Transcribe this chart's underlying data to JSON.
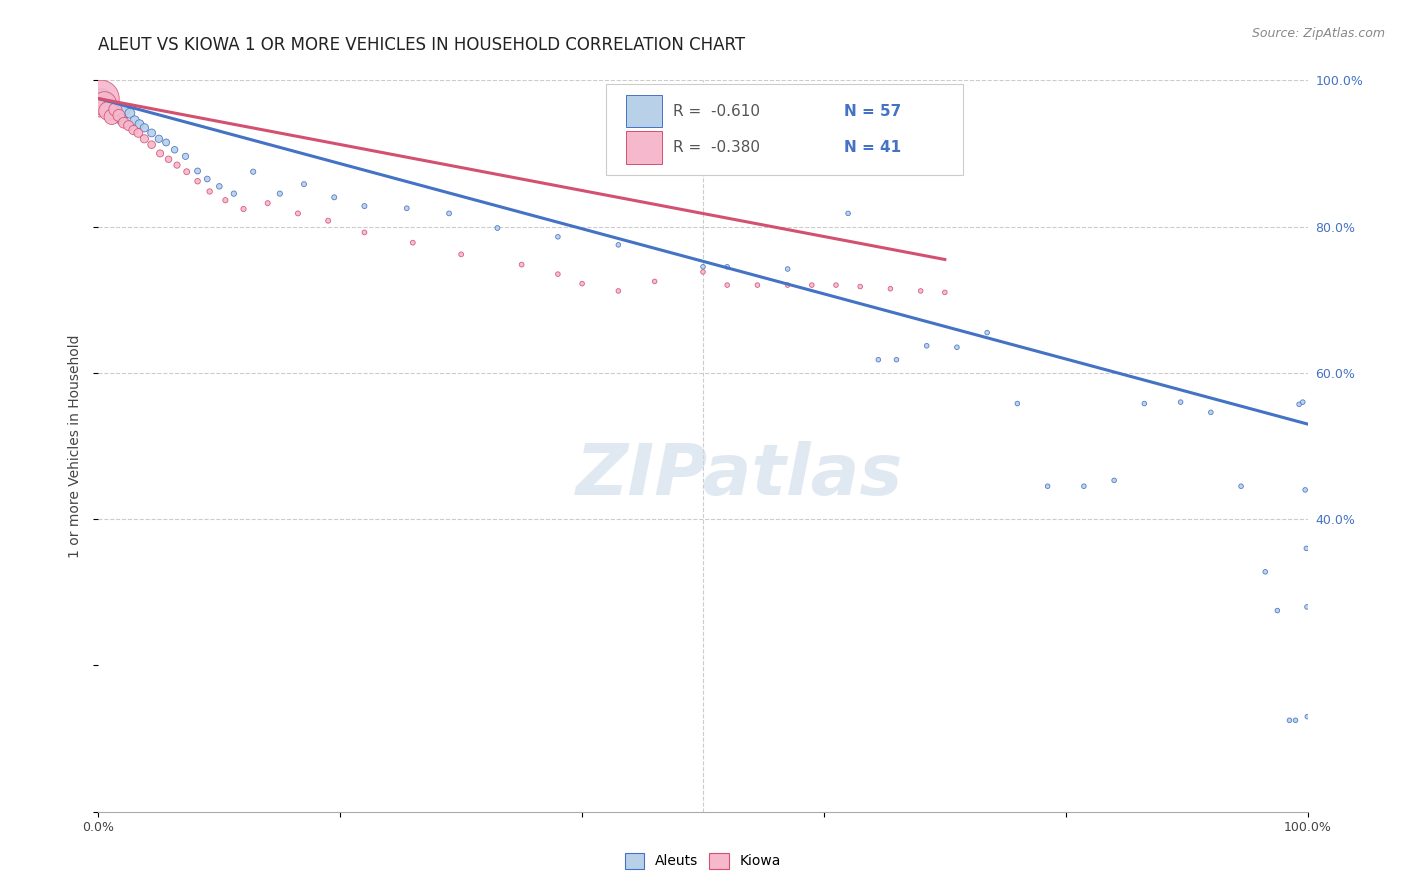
{
  "title": "ALEUT VS KIOWA 1 OR MORE VEHICLES IN HOUSEHOLD CORRELATION CHART",
  "source": "Source: ZipAtlas.com",
  "ylabel": "1 or more Vehicles in Household",
  "legend_R_aleut": "R =  -0.610",
  "legend_R_kiowa": "R =  -0.380",
  "legend_N_aleut": "N = 57",
  "legend_N_kiowa": "N = 41",
  "legend_label_aleut": "Aleuts",
  "legend_label_kiowa": "Kiowa",
  "aleut_color": "#b8d0e8",
  "kiowa_color": "#f5b8cc",
  "aleut_line_color": "#4472c4",
  "kiowa_line_color": "#d45070",
  "background_color": "#ffffff",
  "watermark": "ZIPatlas",
  "xlim": [
    0.0,
    1.0
  ],
  "ylim": [
    0.0,
    1.0
  ],
  "xticks": [
    0.0,
    0.2,
    0.4,
    0.6,
    0.8,
    1.0
  ],
  "yticks": [
    0.4,
    0.6,
    0.8,
    1.0
  ],
  "xticklabels": [
    "0.0%",
    "",
    "",
    "",
    "",
    "100.0%"
  ],
  "yticklabels_right": [
    "40.0%",
    "60.0%",
    "80.0%",
    "100.0%"
  ],
  "aleut_x": [
    0.003,
    0.007,
    0.01,
    0.013,
    0.016,
    0.019,
    0.022,
    0.026,
    0.03,
    0.034,
    0.038,
    0.044,
    0.05,
    0.056,
    0.063,
    0.072,
    0.082,
    0.09,
    0.1,
    0.112,
    0.128,
    0.15,
    0.17,
    0.195,
    0.22,
    0.255,
    0.29,
    0.33,
    0.38,
    0.43,
    0.5,
    0.52,
    0.57,
    0.62,
    0.645,
    0.66,
    0.685,
    0.71,
    0.735,
    0.76,
    0.785,
    0.815,
    0.84,
    0.865,
    0.895,
    0.92,
    0.945,
    0.965,
    0.975,
    0.985,
    0.99,
    0.993,
    0.996,
    0.998,
    0.999,
    0.9995,
    0.9998
  ],
  "aleut_y": [
    0.975,
    0.968,
    0.963,
    0.958,
    0.952,
    0.947,
    0.96,
    0.955,
    0.945,
    0.94,
    0.935,
    0.928,
    0.92,
    0.915,
    0.905,
    0.896,
    0.876,
    0.865,
    0.855,
    0.845,
    0.875,
    0.845,
    0.858,
    0.84,
    0.828,
    0.825,
    0.818,
    0.798,
    0.786,
    0.775,
    0.745,
    0.745,
    0.742,
    0.818,
    0.618,
    0.618,
    0.637,
    0.635,
    0.655,
    0.558,
    0.445,
    0.445,
    0.453,
    0.558,
    0.56,
    0.546,
    0.445,
    0.328,
    0.275,
    0.125,
    0.125,
    0.557,
    0.56,
    0.44,
    0.36,
    0.28,
    0.13
  ],
  "aleut_sizes": [
    200,
    150,
    110,
    90,
    75,
    65,
    58,
    50,
    45,
    40,
    36,
    32,
    28,
    25,
    22,
    20,
    18,
    17,
    16,
    15,
    14,
    14,
    13,
    13,
    13,
    12,
    12,
    12,
    11,
    11,
    11,
    11,
    11,
    11,
    11,
    11,
    11,
    11,
    11,
    11,
    11,
    11,
    11,
    11,
    11,
    11,
    11,
    11,
    11,
    11,
    11,
    11,
    11,
    11,
    11,
    11,
    11
  ],
  "kiowa_x": [
    0.002,
    0.005,
    0.008,
    0.011,
    0.014,
    0.017,
    0.021,
    0.025,
    0.029,
    0.033,
    0.038,
    0.044,
    0.051,
    0.058,
    0.065,
    0.073,
    0.082,
    0.092,
    0.105,
    0.12,
    0.14,
    0.165,
    0.19,
    0.22,
    0.26,
    0.3,
    0.35,
    0.38,
    0.4,
    0.43,
    0.46,
    0.5,
    0.52,
    0.545,
    0.57,
    0.59,
    0.61,
    0.63,
    0.655,
    0.68,
    0.7
  ],
  "kiowa_y": [
    0.975,
    0.968,
    0.958,
    0.95,
    0.96,
    0.952,
    0.942,
    0.938,
    0.932,
    0.928,
    0.92,
    0.912,
    0.9,
    0.892,
    0.884,
    0.875,
    0.862,
    0.848,
    0.836,
    0.824,
    0.832,
    0.818,
    0.808,
    0.792,
    0.778,
    0.762,
    0.748,
    0.735,
    0.722,
    0.712,
    0.725,
    0.738,
    0.72,
    0.72,
    0.72,
    0.72,
    0.72,
    0.718,
    0.715,
    0.712,
    0.71
  ],
  "kiowa_sizes": [
    700,
    300,
    180,
    120,
    90,
    75,
    60,
    52,
    45,
    40,
    35,
    30,
    26,
    22,
    20,
    18,
    16,
    15,
    14,
    14,
    13,
    13,
    13,
    12,
    12,
    12,
    12,
    11,
    11,
    11,
    11,
    11,
    11,
    11,
    11,
    11,
    11,
    11,
    11,
    11,
    11
  ],
  "aleut_line_x": [
    0.0,
    1.0
  ],
  "aleut_line_y": [
    0.975,
    0.53
  ],
  "kiowa_line_x": [
    0.0,
    0.7
  ],
  "kiowa_line_y": [
    0.975,
    0.755
  ],
  "title_fontsize": 12,
  "axis_label_fontsize": 10,
  "tick_fontsize": 9,
  "source_fontsize": 9,
  "watermark_fontsize": 52,
  "watermark_color": "#c8d8e8",
  "watermark_alpha": 0.55
}
